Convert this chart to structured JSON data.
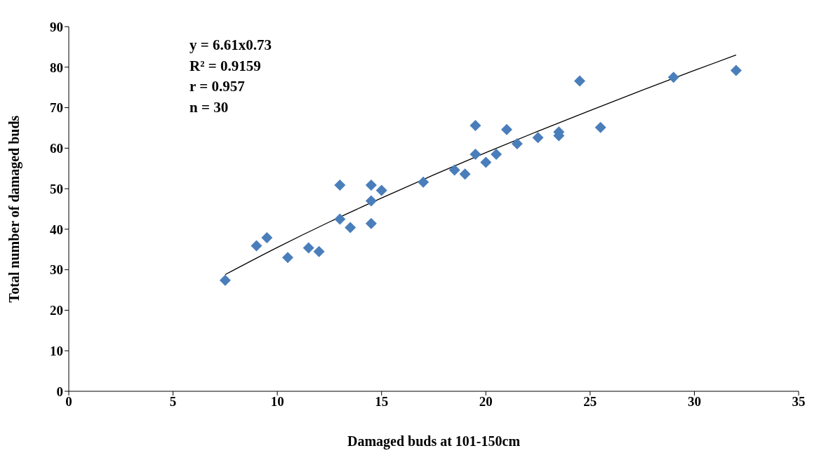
{
  "chart_data": {
    "type": "scatter",
    "xlabel": "Damaged buds at 101-150cm",
    "ylabel": "Total number of damaged buds",
    "xlim": [
      0,
      35
    ],
    "xticks": [
      0,
      5,
      10,
      15,
      20,
      25,
      30,
      35
    ],
    "ylim": [
      0,
      90
    ],
    "yticks": [
      0,
      10,
      20,
      30,
      40,
      50,
      60,
      70,
      80,
      90
    ],
    "grid": false,
    "legend": false,
    "marker": "diamond",
    "annotations": [
      "y = 6.61x0.73",
      "R² = 0.9159",
      "r = 0.957",
      "n = 30"
    ],
    "series": [
      {
        "color": "#4a7ebb",
        "x": [
          7.5,
          9,
          9.5,
          10.5,
          11.5,
          12,
          13,
          13,
          13.5,
          14.5,
          14.5,
          14.5,
          15,
          17,
          18.5,
          19,
          19.5,
          19.5,
          20,
          20.5,
          21,
          21.5,
          22.5,
          23.5,
          23.5,
          24.5,
          25.5,
          29,
          32
        ],
        "values": [
          27.4,
          35.9,
          37.9,
          33,
          35.4,
          34.5,
          50.9,
          42.5,
          40.4,
          50.9,
          47,
          41.4,
          49.6,
          51.6,
          54.6,
          53.6,
          65.6,
          58.5,
          56.5,
          58.5,
          64.6,
          61.1,
          62.6,
          64,
          63.1,
          76.6,
          65.1,
          77.5,
          79.2
        ]
      },
      {
        "type": "line",
        "color": "#000000",
        "marker": "none",
        "x": [
          7.5,
          10,
          12.5,
          15,
          17.5,
          20,
          22.5,
          25,
          27.5,
          30,
          32
        ],
        "values": [
          28.8,
          35.5,
          41.8,
          47.7,
          53.4,
          58.9,
          64.2,
          69.3,
          74.3,
          79.2,
          83
        ]
      }
    ]
  }
}
